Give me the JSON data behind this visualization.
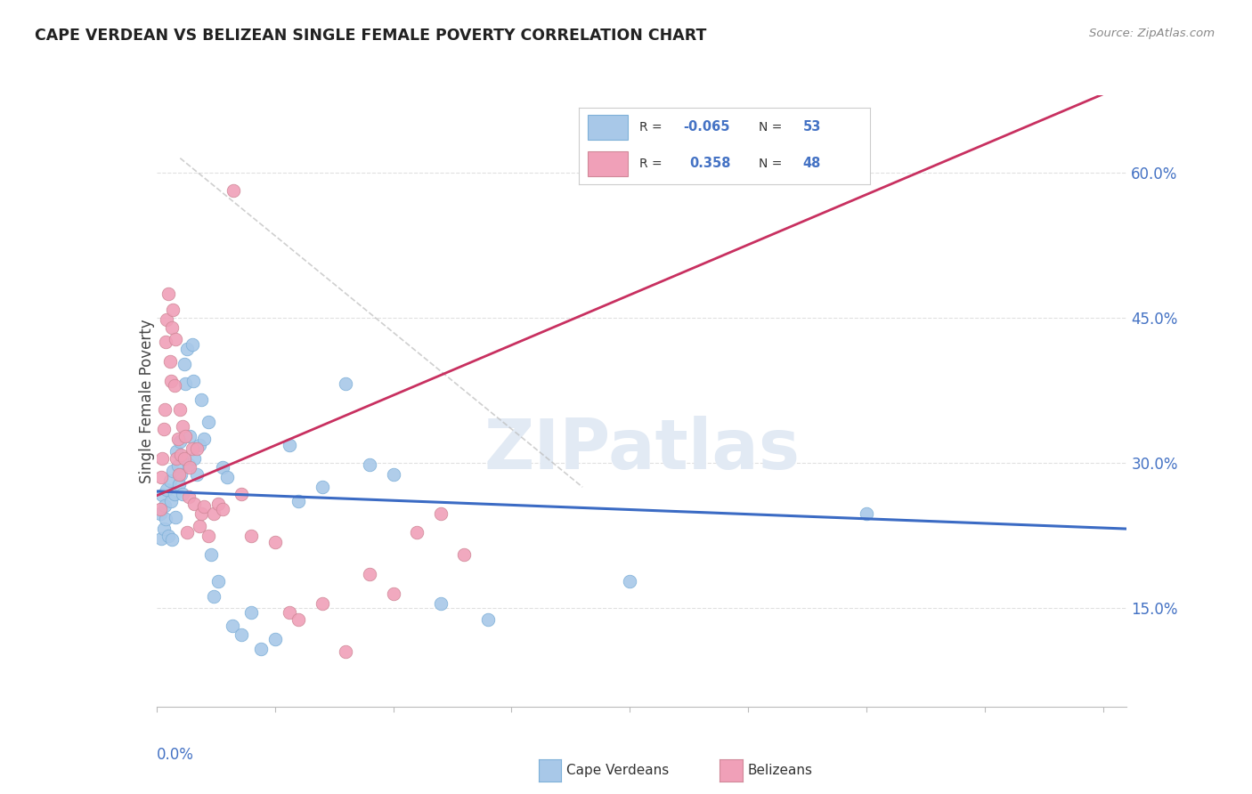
{
  "title": "CAPE VERDEAN VS BELIZEAN SINGLE FEMALE POVERTY CORRELATION CHART",
  "source": "Source: ZipAtlas.com",
  "ylabel": "Single Female Poverty",
  "xlim": [
    0.0,
    0.205
  ],
  "ylim": [
    0.048,
    0.68
  ],
  "yticks": [
    0.15,
    0.3,
    0.45,
    0.6
  ],
  "ytick_labels": [
    "15.0%",
    "30.0%",
    "45.0%",
    "60.0%"
  ],
  "legend_r_blue": "-0.065",
  "legend_n_blue": "53",
  "legend_r_pink": "0.358",
  "legend_n_pink": "48",
  "blue_scatter_color": "#A8C8E8",
  "blue_scatter_edge": "#7EB0D8",
  "pink_scatter_color": "#F0A0B8",
  "pink_scatter_edge": "#D08898",
  "blue_line_color": "#3B6BC4",
  "pink_line_color": "#C83060",
  "diag_line_color": "#BBBBBB",
  "watermark_color": "#E2EAF4",
  "grid_color": "#E0E0E0",
  "title_color": "#222222",
  "source_color": "#888888",
  "axis_label_color": "#4472C4",
  "ylabel_color": "#444444",
  "legend_text_color": "#333333",
  "legend_value_color": "#4472C4"
}
